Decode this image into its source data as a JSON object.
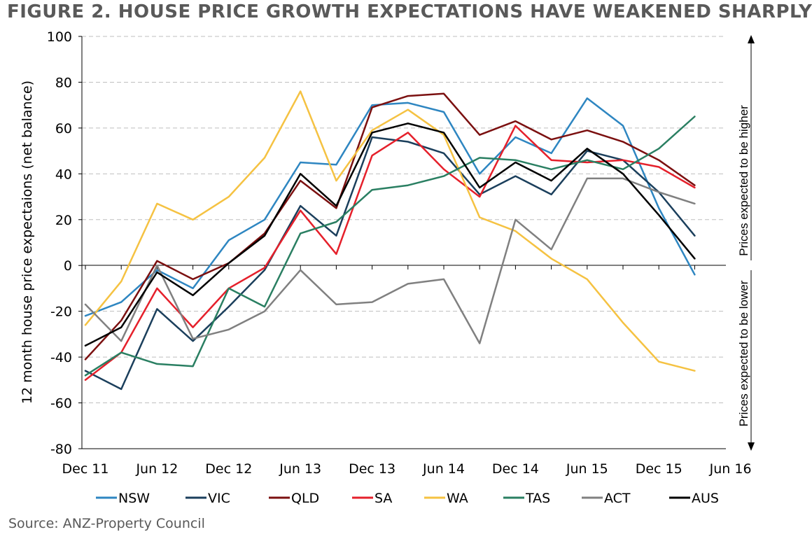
{
  "title": "FIGURE 2. HOUSE PRICE GROWTH EXPECTATIONS HAVE WEAKENED SHARPLY",
  "source": "Source: ANZ-Property Council",
  "chart_data": {
    "type": "line",
    "title": "FIGURE 2. HOUSE PRICE GROWTH EXPECTATIONS HAVE WEAKENED SHARPLY",
    "ylabel": "12 month house price expectaions (net balance)",
    "xlabel": "",
    "ylim": [
      -80,
      100
    ],
    "yticks": [
      -80,
      -60,
      -40,
      -20,
      0,
      20,
      40,
      60,
      80,
      100
    ],
    "x": [
      "Dec 11",
      "Mar 12",
      "Jun 12",
      "Sep 12",
      "Dec 12",
      "Mar 13",
      "Jun 13",
      "Sep 13",
      "Dec 13",
      "Mar 14",
      "Jun 14",
      "Sep 14",
      "Dec 14",
      "Mar 15",
      "Jun 15",
      "Sep 15",
      "Dec 15",
      "Mar 16"
    ],
    "x_tick_labels": [
      "Dec 11",
      "Jun 12",
      "Dec 12",
      "Jun 13",
      "Dec 13",
      "Jun 14",
      "Dec 14",
      "Jun 15",
      "Dec 15",
      "Jun 16"
    ],
    "grid": "horizontal dashed",
    "legend_position": "bottom",
    "annotations": {
      "higher": "Prices expected to be higher",
      "lower": "Prices expected to be lower"
    },
    "series": [
      {
        "name": "NSW",
        "color": "#2E86C1",
        "values": [
          -22,
          -16,
          -2,
          -10,
          11,
          20,
          45,
          44,
          70,
          71,
          67,
          40,
          56,
          49,
          73,
          61,
          25,
          -4
        ]
      },
      {
        "name": "VIC",
        "color": "#1B3F5C",
        "values": [
          -46,
          -54,
          -19,
          -33,
          -18,
          -2,
          26,
          13,
          56,
          54,
          49,
          31,
          39,
          31,
          50,
          46,
          32,
          13
        ]
      },
      {
        "name": "QLD",
        "color": "#7B1010",
        "values": [
          -41,
          -24,
          2,
          -6,
          1,
          14,
          37,
          25,
          69,
          74,
          75,
          57,
          63,
          55,
          59,
          54,
          46,
          35
        ]
      },
      {
        "name": "SA",
        "color": "#E5202B",
        "values": [
          -50,
          -38,
          -10,
          -27,
          -10,
          -1,
          24,
          5,
          48,
          58,
          42,
          30,
          61,
          46,
          45,
          46,
          43,
          34
        ]
      },
      {
        "name": "WA",
        "color": "#F5C242",
        "values": [
          -26,
          -7,
          27,
          20,
          30,
          47,
          76,
          37,
          59,
          68,
          57,
          21,
          15,
          3,
          -6,
          -25,
          -42,
          -46
        ]
      },
      {
        "name": "TAS",
        "color": "#2A7F62",
        "values": [
          -48,
          -38,
          -43,
          -44,
          -10,
          -18,
          14,
          19,
          33,
          35,
          39,
          47,
          46,
          42,
          46,
          42,
          51,
          65
        ]
      },
      {
        "name": "ACT",
        "color": "#808080",
        "values": [
          -17,
          -33,
          0,
          -32,
          -28,
          -20,
          -2,
          -17,
          -16,
          -8,
          -6,
          -34,
          20,
          7,
          38,
          38,
          32,
          27
        ]
      },
      {
        "name": "AUS",
        "color": "#000000",
        "values": [
          -35,
          -27,
          -3,
          -13,
          1,
          13,
          40,
          26,
          58,
          62,
          58,
          34,
          45,
          37,
          51,
          40,
          22,
          3
        ]
      }
    ]
  }
}
